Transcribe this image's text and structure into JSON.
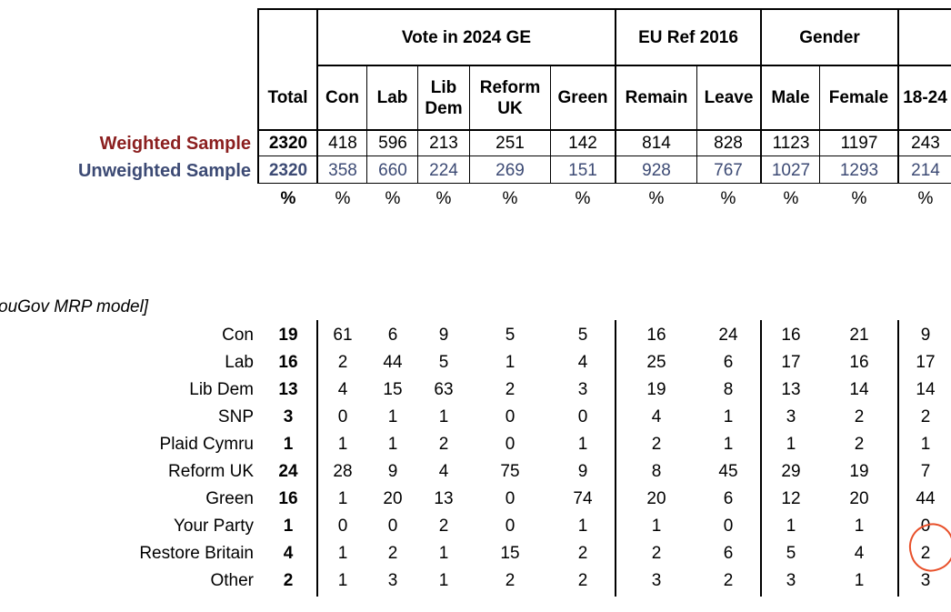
{
  "header": {
    "total_label": "Total",
    "groups": [
      {
        "label": "Vote in 2024 GE"
      },
      {
        "label": "EU Ref 2016"
      },
      {
        "label": "Gender"
      }
    ],
    "columns": [
      "Con",
      "Lab",
      "Lib Dem",
      "Reform UK",
      "Green",
      "Remain",
      "Leave",
      "Male",
      "Female",
      "18-24"
    ]
  },
  "weighted": {
    "label": "Weighted Sample",
    "total": "2320",
    "values": [
      "418",
      "596",
      "213",
      "251",
      "142",
      "814",
      "828",
      "1123",
      "1197",
      "243"
    ]
  },
  "unweighted": {
    "label": "Unweighted Sample",
    "total": "2320",
    "values": [
      "358",
      "660",
      "224",
      "269",
      "151",
      "928",
      "767",
      "1027",
      "1293",
      "214"
    ]
  },
  "pct_symbol": "%",
  "note": "ouGov MRP model]",
  "rows": [
    {
      "label": "Con",
      "total": "19",
      "values": [
        "61",
        "6",
        "9",
        "5",
        "5",
        "16",
        "24",
        "16",
        "21",
        "9"
      ]
    },
    {
      "label": "Lab",
      "total": "16",
      "values": [
        "2",
        "44",
        "5",
        "1",
        "4",
        "25",
        "6",
        "17",
        "16",
        "17"
      ]
    },
    {
      "label": "Lib Dem",
      "total": "13",
      "values": [
        "4",
        "15",
        "63",
        "2",
        "3",
        "19",
        "8",
        "13",
        "14",
        "14"
      ]
    },
    {
      "label": "SNP",
      "total": "3",
      "values": [
        "0",
        "1",
        "1",
        "0",
        "0",
        "4",
        "1",
        "3",
        "2",
        "2"
      ]
    },
    {
      "label": "Plaid Cymru",
      "total": "1",
      "values": [
        "1",
        "1",
        "2",
        "0",
        "1",
        "2",
        "1",
        "1",
        "2",
        "1"
      ]
    },
    {
      "label": "Reform UK",
      "total": "24",
      "values": [
        "28",
        "9",
        "4",
        "75",
        "9",
        "8",
        "45",
        "29",
        "19",
        "7"
      ]
    },
    {
      "label": "Green",
      "total": "16",
      "values": [
        "1",
        "20",
        "13",
        "0",
        "74",
        "20",
        "6",
        "12",
        "20",
        "44"
      ]
    },
    {
      "label": "Your Party",
      "total": "1",
      "values": [
        "0",
        "0",
        "2",
        "0",
        "1",
        "1",
        "0",
        "1",
        "1",
        "0"
      ]
    },
    {
      "label": "Restore Britain",
      "total": "4",
      "values": [
        "1",
        "2",
        "1",
        "15",
        "2",
        "2",
        "6",
        "5",
        "4",
        "2"
      ]
    },
    {
      "label": "Other",
      "total": "2",
      "values": [
        "1",
        "3",
        "1",
        "2",
        "2",
        "3",
        "2",
        "3",
        "1",
        "3"
      ]
    }
  ],
  "colors": {
    "weighted": "#8b1f1f",
    "unweighted": "#3c4a74",
    "annotation": "#e8502a"
  }
}
